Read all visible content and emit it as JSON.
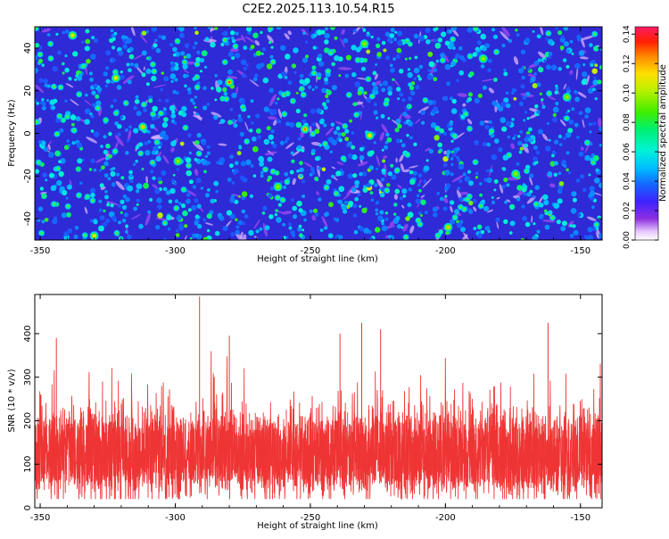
{
  "title": "C2E2.2025.113.10.54.R15",
  "chart_data": [
    {
      "type": "heatmap",
      "name": "spectrogram",
      "xlabel": "Height of straight line (km)",
      "ylabel": "Frequency (Hz)",
      "xlim": [
        -352,
        -142
      ],
      "ylim": [
        -50,
        50
      ],
      "xticks": [
        -350,
        -300,
        -250,
        -200,
        -150
      ],
      "yticks": [
        -40,
        -20,
        0,
        20,
        40
      ],
      "colorbar": {
        "label": "Normalized spectral amplitude",
        "range": [
          0.0,
          0.145
        ],
        "ticks": [
          0.0,
          0.02,
          0.04,
          0.06,
          0.08,
          0.1,
          0.12,
          0.14
        ],
        "tick_labels": [
          "0.00",
          "0.02",
          "0.04",
          "0.06",
          "0.08",
          "0.10",
          "0.12",
          "0.14"
        ]
      },
      "description_note": "dense speckle of blue-dominant values (~0.02-0.04) with scattered green/yellow blobs and rare red peaks (~0.13-0.14)",
      "hotspots": [
        {
          "x": -280,
          "y": 24,
          "value": 0.14
        },
        {
          "x": -252,
          "y": 2,
          "value": 0.13
        },
        {
          "x": -312,
          "y": 3,
          "value": 0.12
        },
        {
          "x": -338,
          "y": 46,
          "value": 0.11
        },
        {
          "x": -322,
          "y": 26,
          "value": 0.11
        },
        {
          "x": -230,
          "y": 42,
          "value": 0.1
        },
        {
          "x": -199,
          "y": -44,
          "value": 0.12
        },
        {
          "x": -174,
          "y": -19,
          "value": 0.1
        },
        {
          "x": -155,
          "y": 17,
          "value": 0.1
        },
        {
          "x": -228,
          "y": -1,
          "value": 0.11
        },
        {
          "x": -262,
          "y": -25,
          "value": 0.1
        },
        {
          "x": -299,
          "y": -13,
          "value": 0.1
        },
        {
          "x": -330,
          "y": -48,
          "value": 0.11
        },
        {
          "x": -186,
          "y": 35,
          "value": 0.1
        }
      ]
    },
    {
      "type": "line",
      "name": "snr",
      "xlabel": "Height of straight line (km)",
      "ylabel": "SNR (10 * v/v)",
      "xlim": [
        -352,
        -142
      ],
      "ylim": [
        0,
        490
      ],
      "xticks": [
        -350,
        -300,
        -250,
        -200,
        -150
      ],
      "yticks": [
        0,
        100,
        200,
        300,
        400
      ],
      "color": "#ef3535",
      "series_note": "dense noisy trace, baseline about 120, typical spread 50-280",
      "peaks": [
        {
          "x": -291,
          "y": 485
        },
        {
          "x": -231,
          "y": 425
        },
        {
          "x": -162,
          "y": 425
        },
        {
          "x": -239,
          "y": 400
        },
        {
          "x": -344,
          "y": 390
        },
        {
          "x": -280,
          "y": 395
        },
        {
          "x": -224,
          "y": 410
        }
      ]
    }
  ]
}
